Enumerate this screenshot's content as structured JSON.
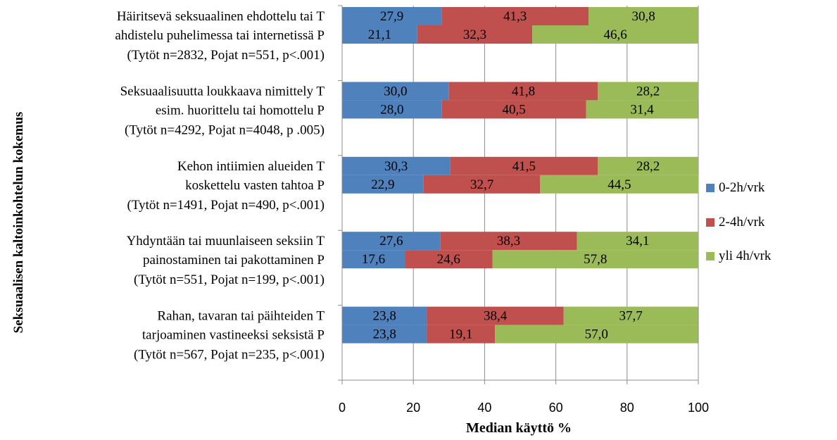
{
  "chart_data": {
    "type": "bar",
    "orientation": "horizontal",
    "stacked": true,
    "ylabel": "Seksuaalisen kaltoinkohtelun kokemus",
    "xlabel": "Median käyttö %",
    "xlim": [
      0,
      100
    ],
    "xticks": [
      "0",
      "20",
      "40",
      "60",
      "80",
      "100"
    ],
    "grid": true,
    "legend_position": "right",
    "series_colors": [
      "#4F81BD",
      "#C0504D",
      "#9BBB59"
    ],
    "legend": [
      "0-2h/vrk",
      "2-4h/vrk",
      "yli 4h/vrk"
    ],
    "groups": [
      {
        "label_lines": [
          "Häiritsevä seksuaalinen ehdottelu tai T",
          "ahdistelu puhelimessa tai internetissä P",
          "(Tytöt n=2832, Pojat n=551, p<.001)"
        ],
        "bars": [
          {
            "sex": "T",
            "values": [
              27.9,
              41.3,
              30.8
            ],
            "labels": [
              "27,9",
              "41,3",
              "30,8"
            ]
          },
          {
            "sex": "P",
            "values": [
              21.1,
              32.3,
              46.6
            ],
            "labels": [
              "21,1",
              "32,3",
              "46,6"
            ]
          }
        ]
      },
      {
        "label_lines": [
          "Seksuaalisuutta loukkaava nimittely T",
          "esim. huorittelu tai homottelu P",
          "(Tytöt n=4292, Pojat n=4048, p .005)"
        ],
        "bars": [
          {
            "sex": "T",
            "values": [
              30.0,
              41.8,
              28.2
            ],
            "labels": [
              "30,0",
              "41,8",
              "28,2"
            ]
          },
          {
            "sex": "P",
            "values": [
              28.0,
              40.5,
              31.4
            ],
            "labels": [
              "28,0",
              "40,5",
              "31,4"
            ]
          }
        ]
      },
      {
        "label_lines": [
          "Kehon intiimien alueiden T",
          "koskettelu vasten tahtoa P",
          "(Tytöt n=1491, Pojat n=490, p<.001)"
        ],
        "bars": [
          {
            "sex": "T",
            "values": [
              30.3,
              41.5,
              28.2
            ],
            "labels": [
              "30,3",
              "41,5",
              "28,2"
            ]
          },
          {
            "sex": "P",
            "values": [
              22.9,
              32.7,
              44.5
            ],
            "labels": [
              "22,9",
              "32,7",
              "44,5"
            ]
          }
        ]
      },
      {
        "label_lines": [
          "Yhdyntään tai muunlaiseen seksiin T",
          "painostaminen tai pakottaminen P",
          "(Tytöt n=551, Pojat n=199, p<.001)"
        ],
        "bars": [
          {
            "sex": "T",
            "values": [
              27.6,
              38.3,
              34.1
            ],
            "labels": [
              "27,6",
              "38,3",
              "34,1"
            ]
          },
          {
            "sex": "P",
            "values": [
              17.6,
              24.6,
              57.8
            ],
            "labels": [
              "17,6",
              "24,6",
              "57,8"
            ]
          }
        ]
      },
      {
        "label_lines": [
          "Rahan, tavaran tai päihteiden T",
          "tarjoaminen vastineeksi seksistä P",
          "(Tytöt n=567, Pojat n=235, p<.001)"
        ],
        "bars": [
          {
            "sex": "T",
            "values": [
              23.8,
              38.4,
              37.7
            ],
            "labels": [
              "23,8",
              "38,4",
              "37,7"
            ]
          },
          {
            "sex": "P",
            "values": [
              23.8,
              19.1,
              57.0
            ],
            "labels": [
              "23,8",
              "19,1",
              "57,0"
            ]
          }
        ]
      }
    ]
  }
}
